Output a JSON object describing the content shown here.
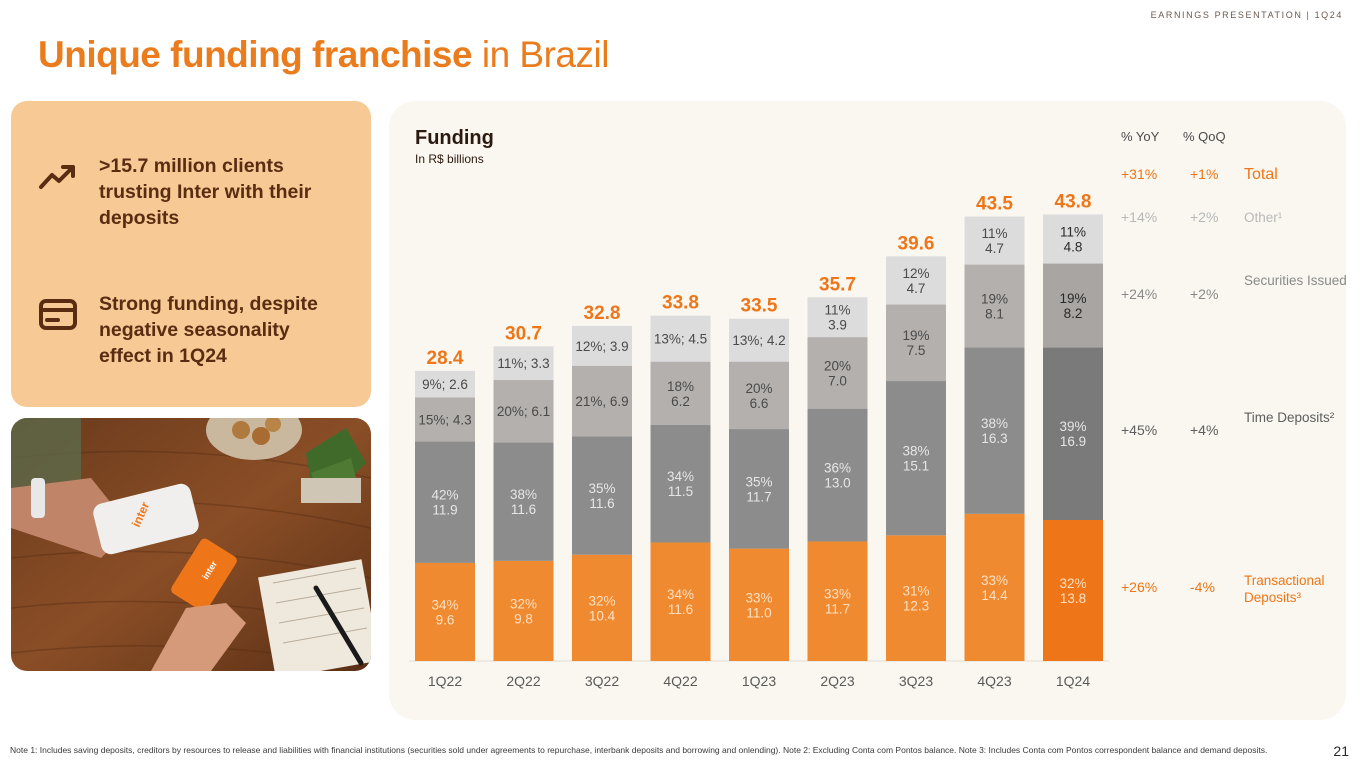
{
  "header": {
    "tag": "EARNINGS PRESENTATION | 1Q24"
  },
  "title": {
    "bold": "Unique funding franchise",
    "light": " in Brazil"
  },
  "highlights": [
    {
      "icon": "trend-up-icon",
      "text": ">15.7 million clients trusting Inter with their deposits"
    },
    {
      "icon": "credit-card-icon",
      "text": "Strong funding, despite negative seasonality effect in 1Q24"
    }
  ],
  "photo": {
    "card_brand": "inter"
  },
  "chart_data": {
    "type": "bar",
    "stacked": true,
    "title": "Funding",
    "subtitle": "In R$ billions",
    "categories": [
      "1Q22",
      "2Q22",
      "3Q22",
      "4Q22",
      "1Q23",
      "2Q23",
      "3Q23",
      "4Q23",
      "1Q24"
    ],
    "totals": [
      28.4,
      30.7,
      32.8,
      33.8,
      33.5,
      35.7,
      39.6,
      43.5,
      43.8
    ],
    "ylim": [
      0,
      46
    ],
    "series": [
      {
        "name": "Transactional Deposits",
        "color": "#f08a30",
        "highlight_color": "#ee7618",
        "values": [
          9.6,
          9.8,
          10.4,
          11.6,
          11.0,
          11.7,
          12.3,
          14.4,
          13.8
        ],
        "labels": [
          "34%\n9.6",
          "32%\n9.8",
          "32%\n10.4",
          "34%\n11.6",
          "33%\n11.0",
          "33%\n11.7",
          "31%\n12.3",
          "33%\n14.4",
          "32%\n13.8"
        ]
      },
      {
        "name": "Time Deposits",
        "color": "#8c8c8c",
        "highlight_color": "#7a7a7a",
        "values": [
          11.9,
          11.6,
          11.6,
          11.5,
          11.7,
          13.0,
          15.1,
          16.3,
          16.9
        ],
        "labels": [
          "42%\n11.9",
          "38%\n11.6",
          "35%\n11.6",
          "34%\n11.5",
          "35%\n11.7",
          "36%\n13.0",
          "38%\n15.1",
          "38%\n16.3",
          "39%\n16.9"
        ]
      },
      {
        "name": "Securities Issued",
        "color": "#b3b0ae",
        "highlight_color": "#a8a5a3",
        "values": [
          4.3,
          6.1,
          6.9,
          6.2,
          6.6,
          7.0,
          7.5,
          8.1,
          8.2
        ],
        "labels": [
          "15%; 4.3",
          "20%; 6.1",
          "21%, 6.9",
          "18%\n6.2",
          "20%\n6.6",
          "20%\n7.0",
          "19%\n7.5",
          "19%\n8.1",
          "19%\n8.2"
        ]
      },
      {
        "name": "Other",
        "color": "#dcdcdc",
        "highlight_color": "#dcdcdc",
        "values": [
          2.6,
          3.3,
          3.9,
          4.5,
          4.2,
          3.9,
          4.7,
          4.7,
          4.8
        ],
        "labels": [
          "9%; 2.6",
          "11%; 3.3",
          "12%; 3.9",
          "13%; 4.5",
          "13%; 4.2",
          "11%\n3.9",
          "12%\n4.7",
          "11%\n4.7",
          "11%\n4.8"
        ]
      }
    ]
  },
  "side_table": {
    "yoy_header": "% YoY",
    "qoq_header": "% QoQ",
    "rows": [
      {
        "yoy": "+31%",
        "qoq": "+1%",
        "label": "Total",
        "color": "#ee7618"
      },
      {
        "yoy": "+14%",
        "qoq": "+2%",
        "label": "Other¹",
        "color": "#b8b8b8"
      },
      {
        "yoy": "+24%",
        "qoq": "+2%",
        "label": "Securities Issued",
        "color": "#8a8a8a"
      },
      {
        "yoy": "+45%",
        "qoq": "+4%",
        "label": "Time Deposits²",
        "color": "#5e5e5e"
      },
      {
        "yoy": "+26%",
        "qoq": "-4%",
        "label": "Transactional Deposits³",
        "color": "#ee7618"
      }
    ]
  },
  "footnote": "Note 1: Includes saving deposits, creditors by resources to release and liabilities with financial institutions (securities sold under agreements to repurchase, interbank deposits and borrowing and onlending). Note 2: Excluding Conta com Pontos balance. Note 3: Includes Conta com Pontos correspondent balance and demand deposits.",
  "page_number": "21"
}
